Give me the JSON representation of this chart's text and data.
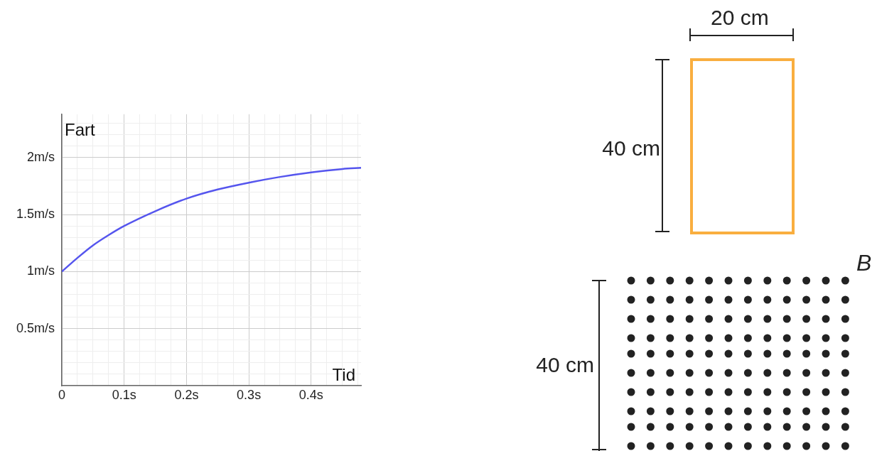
{
  "chart_data": {
    "type": "line",
    "xlabel": "Tid",
    "ylabel": "Fart",
    "x": [
      0,
      0.025,
      0.05,
      0.075,
      0.1,
      0.15,
      0.2,
      0.25,
      0.3,
      0.35,
      0.4,
      0.45,
      0.48
    ],
    "series": [
      {
        "color": "#5555ee",
        "values": [
          1.0,
          1.12,
          1.23,
          1.32,
          1.4,
          1.53,
          1.64,
          1.72,
          1.78,
          1.83,
          1.87,
          1.9,
          1.91
        ]
      }
    ],
    "xlim": [
      0,
      0.48
    ],
    "ylim": [
      0,
      2.38
    ],
    "xticks": [
      {
        "value": 0,
        "label": "0"
      },
      {
        "value": 0.025,
        "label": null
      },
      {
        "value": 0.05,
        "label": null
      },
      {
        "value": 0.075,
        "label": null
      },
      {
        "value": 0.1,
        "label": "0.1s"
      },
      {
        "value": 0.125,
        "label": null
      },
      {
        "value": 0.15,
        "label": null
      },
      {
        "value": 0.175,
        "label": null
      },
      {
        "value": 0.2,
        "label": "0.2s"
      },
      {
        "value": 0.225,
        "label": null
      },
      {
        "value": 0.25,
        "label": null
      },
      {
        "value": 0.275,
        "label": null
      },
      {
        "value": 0.3,
        "label": "0.3s"
      },
      {
        "value": 0.325,
        "label": null
      },
      {
        "value": 0.35,
        "label": null
      },
      {
        "value": 0.375,
        "label": null
      },
      {
        "value": 0.4,
        "label": "0.4s"
      },
      {
        "value": 0.425,
        "label": null
      },
      {
        "value": 0.45,
        "label": null
      },
      {
        "value": 0.475,
        "label": null
      }
    ],
    "yticks": [
      {
        "value": 0,
        "label": null
      },
      {
        "value": 0.1,
        "label": null
      },
      {
        "value": 0.2,
        "label": null
      },
      {
        "value": 0.3,
        "label": null
      },
      {
        "value": 0.4,
        "label": null
      },
      {
        "value": 0.5,
        "label": "0.5m/s"
      },
      {
        "value": 0.6,
        "label": null
      },
      {
        "value": 0.7,
        "label": null
      },
      {
        "value": 0.8,
        "label": null
      },
      {
        "value": 0.9,
        "label": null
      },
      {
        "value": 1,
        "label": "1m/s"
      },
      {
        "value": 1.1,
        "label": null
      },
      {
        "value": 1.2,
        "label": null
      },
      {
        "value": 1.3,
        "label": null
      },
      {
        "value": 1.4,
        "label": null
      },
      {
        "value": 1.5,
        "label": "1.5m/s"
      },
      {
        "value": 1.6,
        "label": null
      },
      {
        "value": 1.7,
        "label": null
      },
      {
        "value": 1.8,
        "label": null
      },
      {
        "value": 1.9,
        "label": null
      },
      {
        "value": 2,
        "label": "2m/s"
      },
      {
        "value": 2.1,
        "label": null
      },
      {
        "value": 2.2,
        "label": null
      },
      {
        "value": 2.3,
        "label": null
      }
    ],
    "grid": true,
    "marker": "none",
    "line_style": "solid",
    "annotations": [
      "20 cm",
      "40 cm",
      "40 cm",
      "B⃗"
    ]
  }
}
